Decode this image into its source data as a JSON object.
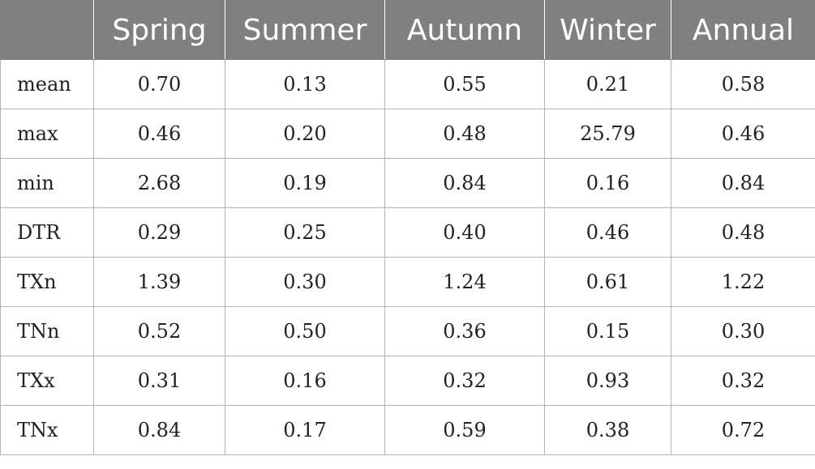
{
  "table": {
    "headers": [
      "",
      "Spring",
      "Summer",
      "Autumn",
      "Winter",
      "Annual"
    ],
    "rows": [
      {
        "label": "mean",
        "values": [
          "0.70",
          "0.13",
          "0.55",
          "0.21",
          "0.58"
        ]
      },
      {
        "label": "max",
        "values": [
          "0.46",
          "0.20",
          "0.48",
          "25.79",
          "0.46"
        ]
      },
      {
        "label": "min",
        "values": [
          "2.68",
          "0.19",
          "0.84",
          "0.16",
          "0.84"
        ]
      },
      {
        "label": "DTR",
        "values": [
          "0.29",
          "0.25",
          "0.40",
          "0.46",
          "0.48"
        ]
      },
      {
        "label": "TXn",
        "values": [
          "1.39",
          "0.30",
          "1.24",
          "0.61",
          "1.22"
        ]
      },
      {
        "label": "TNn",
        "values": [
          "0.52",
          "0.50",
          "0.36",
          "0.15",
          "0.30"
        ]
      },
      {
        "label": "TXx",
        "values": [
          "0.31",
          "0.16",
          "0.32",
          "0.93",
          "0.32"
        ]
      },
      {
        "label": "TNx",
        "values": [
          "0.84",
          "0.17",
          "0.59",
          "0.38",
          "0.72"
        ]
      }
    ]
  },
  "colors": {
    "header_bg": "#808080",
    "header_text": "#ffffff",
    "grid": "#b3b3b3"
  }
}
